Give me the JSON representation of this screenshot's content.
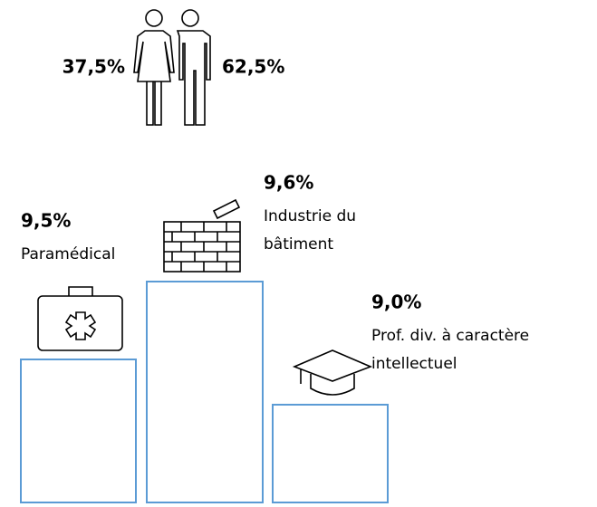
{
  "gender": {
    "female": "37,5%",
    "male": "62,5%"
  },
  "podium": [
    {
      "value": "9,5%",
      "label": [
        "Paramédical"
      ]
    },
    {
      "value": "9,6%",
      "label": [
        "Industrie du",
        "bâtiment"
      ]
    },
    {
      "value": "9,0%",
      "label": [
        "Prof. div. à caractère",
        "intellectuel"
      ]
    }
  ]
}
